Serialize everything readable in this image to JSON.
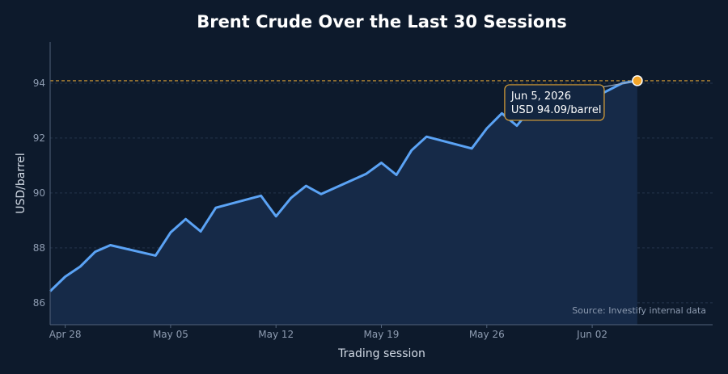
{
  "colors": {
    "background": "#0d1a2c",
    "line": "#5ba3f5",
    "area_fill": "#162a48",
    "reference_line": "#e0a437",
    "marker": "#f4a62a"
  },
  "chart_data": {
    "type": "area",
    "title": "Brent Crude Over the Last 30 Sessions",
    "xlabel": "Trading session",
    "ylabel": "USD/barrel",
    "ylim": [
      85.2,
      95.5
    ],
    "xlim": [
      "2026-04-27",
      "2026-06-10"
    ],
    "grid": true,
    "x_ticks": [
      {
        "date": "2026-04-28",
        "label": "Apr 28"
      },
      {
        "date": "2026-05-05",
        "label": "May 05"
      },
      {
        "date": "2026-05-12",
        "label": "May 12"
      },
      {
        "date": "2026-05-19",
        "label": "May 19"
      },
      {
        "date": "2026-05-26",
        "label": "May 26"
      },
      {
        "date": "2026-06-02",
        "label": "Jun 02"
      }
    ],
    "y_ticks": [
      86,
      88,
      90,
      92,
      94
    ],
    "series": [
      {
        "x": [
          "2026-04-27",
          "2026-04-28",
          "2026-04-29",
          "2026-04-30",
          "2026-05-01",
          "2026-05-04",
          "2026-05-05",
          "2026-05-06",
          "2026-05-07",
          "2026-05-08",
          "2026-05-11",
          "2026-05-12",
          "2026-05-13",
          "2026-05-14",
          "2026-05-15",
          "2026-05-18",
          "2026-05-19",
          "2026-05-20",
          "2026-05-21",
          "2026-05-22",
          "2026-05-25",
          "2026-05-26",
          "2026-05-27",
          "2026-05-28",
          "2026-05-29",
          "2026-06-01",
          "2026-06-02",
          "2026-06-03",
          "2026-06-04",
          "2026-06-05"
        ],
        "y": [
          86.42,
          86.95,
          87.32,
          87.86,
          88.1,
          87.72,
          88.56,
          89.05,
          88.6,
          89.46,
          89.9,
          89.15,
          89.82,
          90.26,
          89.96,
          90.7,
          91.1,
          90.66,
          91.55,
          92.05,
          91.62,
          92.35,
          92.9,
          92.45,
          93.12,
          93.0,
          93.45,
          93.72,
          94.0,
          94.09
        ]
      }
    ],
    "reference_line": {
      "y": 94.09
    },
    "annotation": {
      "date": "2026-06-05",
      "value": 94.09,
      "line1": "Jun 5, 2026",
      "line2": "USD 94.09/barrel"
    },
    "source": "Source: Investify internal data"
  }
}
